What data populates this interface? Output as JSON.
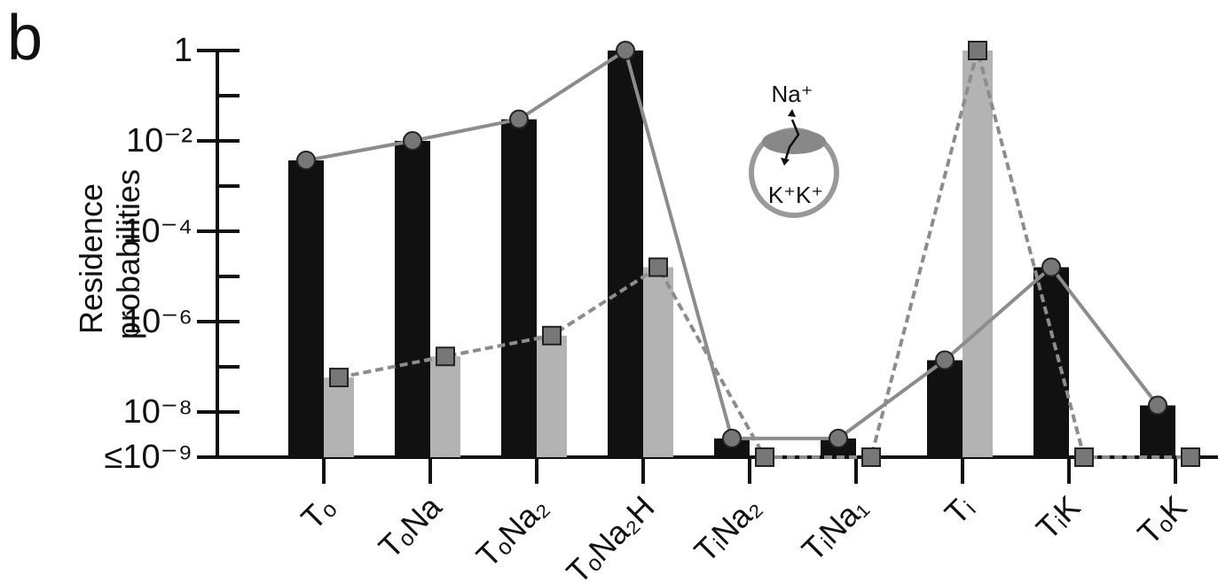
{
  "chart_data": {
    "type": "bar",
    "panel_label": "b",
    "ylabel": "Residence probabilities",
    "annotations": [
      "Na⁺",
      "K⁺K⁺"
    ],
    "categories": [
      "Tₒ",
      "TₒNa",
      "TₒNa₂",
      "TₒNa₂H",
      "TᵢNa₂",
      "TᵢNa₁",
      "Tᵢ",
      "TᵢK",
      "TₒK"
    ],
    "log_scale": true,
    "ylim": [
      1e-09,
      1
    ],
    "yticks": [
      {
        "value": 1e-09,
        "label": "≤10⁻⁹"
      },
      {
        "value": 1e-08,
        "label": "10⁻⁸"
      },
      {
        "value": 1e-06,
        "label": "10⁻⁶"
      },
      {
        "value": 0.0001,
        "label": "10⁻⁴"
      },
      {
        "value": 0.01,
        "label": "10⁻²"
      },
      1
    ],
    "yminorticks": [
      1e-07,
      1e-05,
      0.001,
      0.1
    ],
    "series": [
      {
        "color": "#111111",
        "line_color": "#8c8c8c",
        "marker": "circle",
        "line_style": "solid",
        "values": [
          0.0037,
          0.01,
          0.03,
          1,
          2.6e-09,
          2.6e-09,
          1.4e-07,
          1.6e-05,
          1.4e-08
        ]
      },
      {
        "color": "#b3b3b3",
        "line_color": "#8c8c8c",
        "marker": "square",
        "line_style": "dashed",
        "values": [
          5.8e-08,
          1.7e-07,
          4.9e-07,
          1.6e-05,
          1e-09,
          1e-09,
          1,
          1e-09,
          1e-09
        ]
      }
    ]
  }
}
